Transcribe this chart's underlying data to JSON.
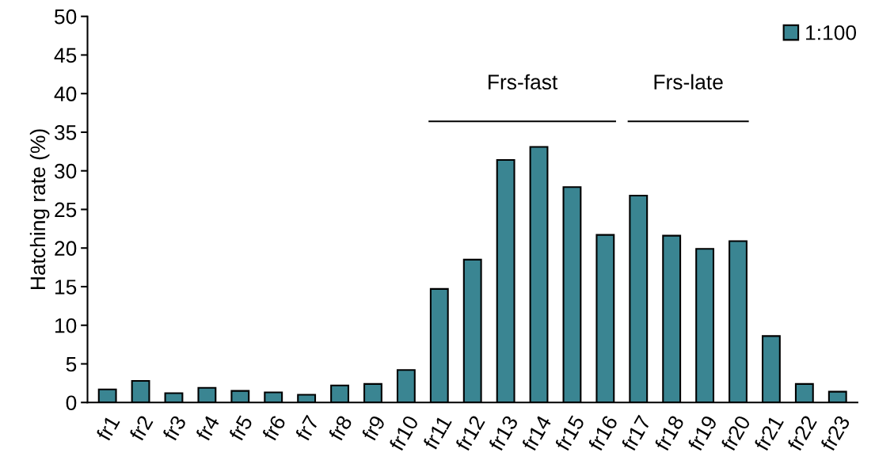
{
  "chart_data": {
    "type": "bar",
    "ylabel": "Hatching rate (%)",
    "categories": [
      "fr1",
      "fr2",
      "fr3",
      "fr4",
      "fr5",
      "fr6",
      "fr7",
      "fr8",
      "fr9",
      "fr10",
      "fr11",
      "fr12",
      "fr13",
      "fr14",
      "fr15",
      "fr16",
      "fr17",
      "fr18",
      "fr19",
      "fr20",
      "fr21",
      "fr22",
      "fr23"
    ],
    "series": [
      {
        "name": "1:100",
        "color": "#3a8592",
        "values": [
          1.7,
          2.8,
          1.2,
          1.9,
          1.5,
          1.3,
          1.0,
          2.2,
          2.4,
          4.2,
          14.7,
          18.5,
          31.4,
          33.1,
          27.9,
          21.7,
          26.8,
          21.6,
          19.9,
          20.9,
          8.6,
          2.4,
          1.4
        ]
      }
    ],
    "ylim": [
      0,
      50
    ],
    "yticks": [
      0,
      5,
      10,
      15,
      20,
      25,
      30,
      35,
      40,
      45,
      50
    ],
    "annotations": [
      "Frs-fast",
      "Frs-late"
    ],
    "grid": false,
    "legend": "top right"
  }
}
